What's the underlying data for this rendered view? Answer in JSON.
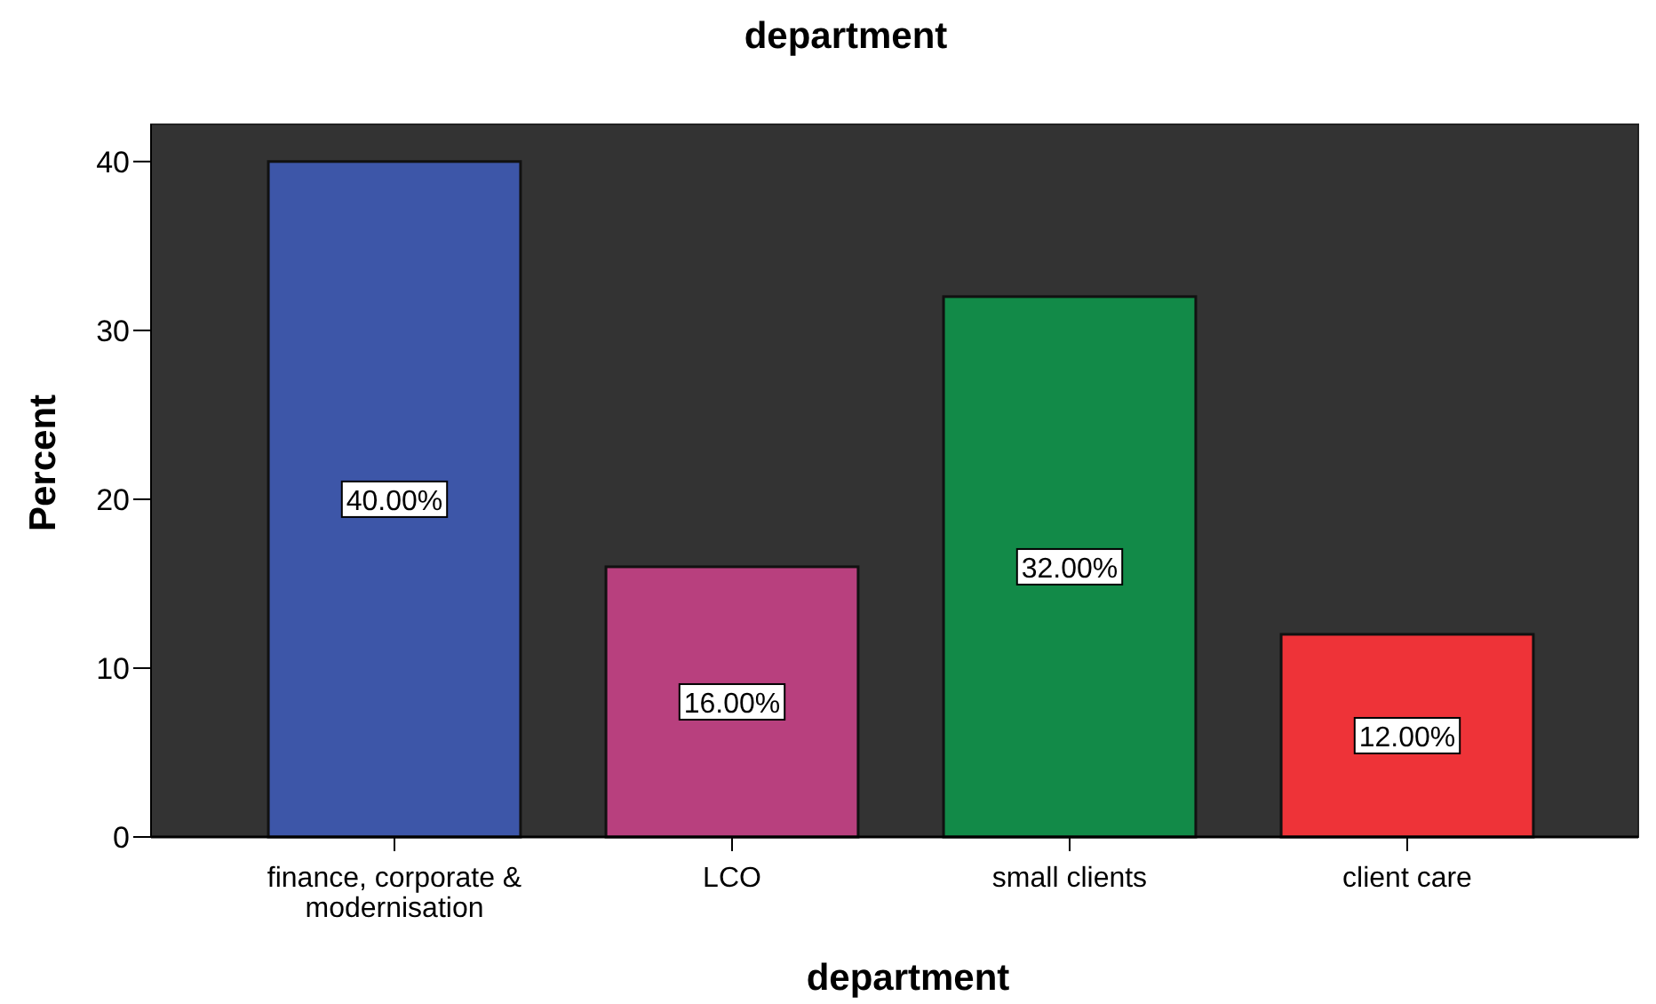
{
  "chart_data": {
    "type": "bar",
    "title": "department",
    "xlabel": "department",
    "ylabel": "Percent",
    "categories": [
      "finance, corporate & modernisation",
      "LCO",
      "small clients",
      "client care"
    ],
    "values": [
      40,
      16,
      32,
      12
    ],
    "colors": [
      "#3d56a8",
      "#b8407e",
      "#128a48",
      "#ee3338"
    ],
    "value_labels": [
      "40.00%",
      "16.00%",
      "32.00%",
      "12.00%"
    ],
    "ylim": [
      0,
      42.2
    ],
    "yticks": [
      0,
      10,
      20,
      30,
      40
    ],
    "grid": false
  }
}
